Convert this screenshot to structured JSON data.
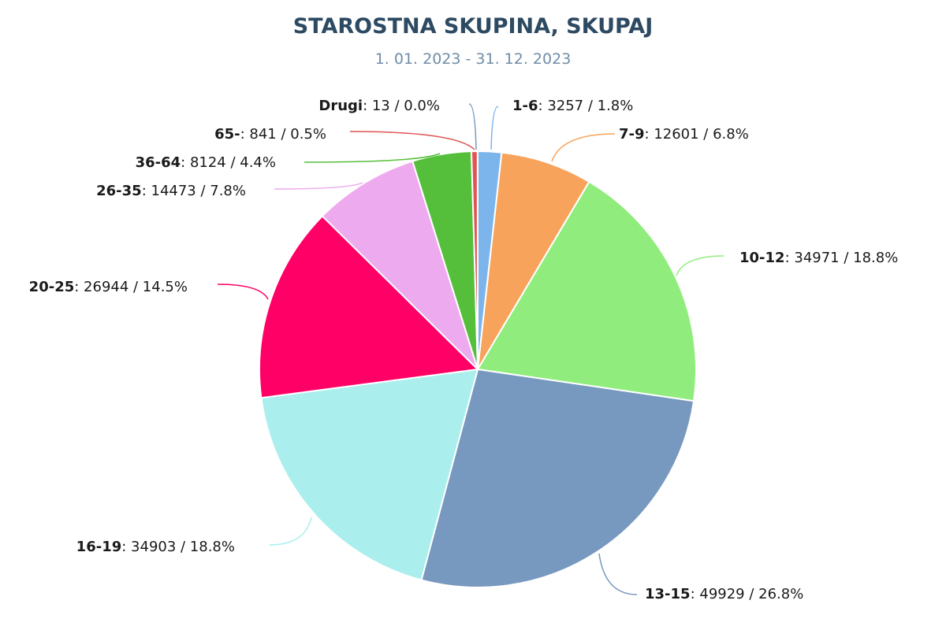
{
  "chart_data": {
    "type": "pie",
    "title": "STAROSTNA SKUPINA, SKUPAJ",
    "subtitle": "1. 01. 2023 - 31. 12. 2023",
    "slices": [
      {
        "label": "1-6",
        "value": 3257,
        "percent": "1.8%",
        "color": "#7cb5ec"
      },
      {
        "label": "7-9",
        "value": 12601,
        "percent": "6.8%",
        "color": "#f7a35c"
      },
      {
        "label": "10-12",
        "value": 34971,
        "percent": "18.8%",
        "color": "#90ed7d"
      },
      {
        "label": "13-15",
        "value": 49929,
        "percent": "26.8%",
        "color": "#7798bf"
      },
      {
        "label": "16-19",
        "value": 34903,
        "percent": "18.8%",
        "color": "#aaeeee"
      },
      {
        "label": "20-25",
        "value": 26944,
        "percent": "14.5%",
        "color": "#ff0066"
      },
      {
        "label": "26-35",
        "value": 14473,
        "percent": "7.8%",
        "color": "#eeaaee"
      },
      {
        "label": "36-64",
        "value": 8124,
        "percent": "4.4%",
        "color": "#55bf3b"
      },
      {
        "label": "65-",
        "value": 841,
        "percent": "0.5%",
        "color": "#df5353"
      },
      {
        "label": "Drugi",
        "value": 13,
        "percent": "0.0%",
        "color": "#7798bf"
      }
    ]
  }
}
